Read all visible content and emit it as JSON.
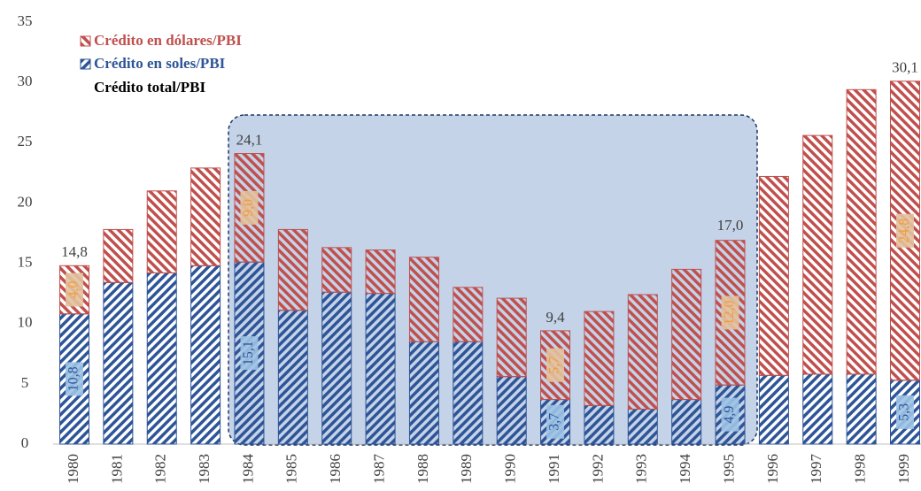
{
  "chart_data": {
    "type": "stacked-bar",
    "categories": [
      "1980",
      "1981",
      "1982",
      "1983",
      "1984",
      "1985",
      "1986",
      "1987",
      "1988",
      "1989",
      "1990",
      "1991",
      "1992",
      "1993",
      "1994",
      "1995",
      "1996",
      "1997",
      "1998",
      "1999"
    ],
    "series": [
      {
        "name": "Crédito en soles/PBI",
        "color": "#2e5597",
        "values": [
          10.8,
          13.4,
          14.2,
          14.8,
          15.1,
          11.1,
          12.6,
          12.5,
          8.5,
          8.5,
          5.6,
          3.7,
          3.2,
          2.9,
          3.7,
          4.9,
          5.7,
          5.8,
          5.8,
          5.3
        ],
        "value_labels": [
          "10,8",
          null,
          null,
          null,
          "15,1",
          null,
          null,
          null,
          null,
          null,
          null,
          "3,7",
          null,
          null,
          null,
          "4,9",
          null,
          null,
          null,
          "5,3"
        ]
      },
      {
        "name": "Crédito en dólares/PBI",
        "color": "#c0504d",
        "values": [
          4.0,
          4.4,
          6.8,
          8.1,
          9.0,
          6.7,
          3.7,
          3.6,
          7.0,
          4.5,
          6.5,
          5.7,
          7.8,
          9.5,
          10.8,
          12.0,
          16.5,
          19.8,
          23.6,
          24.8
        ],
        "value_labels": [
          "4,0",
          null,
          null,
          null,
          "9,0",
          null,
          null,
          null,
          null,
          null,
          null,
          "5,7",
          null,
          null,
          null,
          "12,0",
          null,
          null,
          null,
          "24,8"
        ]
      }
    ],
    "totals": {
      "name": "Crédito total/PBI",
      "values": [
        14.8,
        null,
        null,
        null,
        24.1,
        null,
        null,
        null,
        null,
        null,
        null,
        9.4,
        null,
        null,
        null,
        17.0,
        null,
        null,
        null,
        30.1
      ],
      "value_labels": [
        "14,8",
        null,
        null,
        null,
        "24,1",
        null,
        null,
        null,
        null,
        null,
        null,
        "9,4",
        null,
        null,
        null,
        "17,0",
        null,
        null,
        null,
        "30,1"
      ]
    },
    "ylim": [
      0,
      35
    ],
    "yticks": [
      0,
      5,
      10,
      15,
      20,
      25,
      30,
      35
    ],
    "grid": false
  }
}
